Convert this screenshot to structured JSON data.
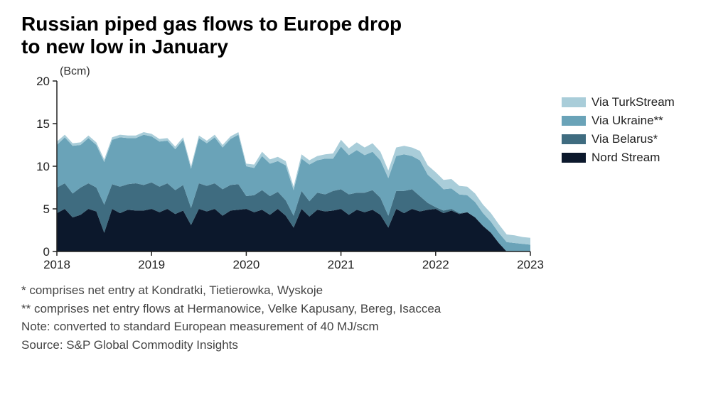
{
  "title_line1": "Russian piped gas flows to Europe drop",
  "title_line2": "to new low in January",
  "unit": "(Bcm)",
  "chart": {
    "type": "stacked-area",
    "background": "#ffffff",
    "axis_color": "#222222",
    "ylim": [
      0,
      20
    ],
    "ytick_step": 5,
    "yticks": [
      0,
      5,
      10,
      15,
      20
    ],
    "x_years": [
      2018,
      2019,
      2020,
      2021,
      2022,
      2023
    ],
    "x_points_per_year": 12,
    "x_label_fontsize": 17,
    "y_label_fontsize": 17,
    "title_fontsize": 28,
    "series": [
      {
        "name": "Nord Stream",
        "color": "#0c182c",
        "values": [
          4.5,
          5.0,
          4.0,
          4.3,
          5.0,
          4.7,
          2.2,
          5.0,
          4.5,
          4.9,
          4.8,
          4.8,
          5.0,
          4.6,
          5.0,
          4.4,
          4.8,
          3.1,
          5.0,
          4.7,
          5.0,
          4.2,
          4.8,
          4.9,
          5.0,
          4.6,
          4.9,
          4.3,
          5.0,
          4.2,
          2.8,
          5.0,
          4.1,
          4.9,
          4.7,
          4.8,
          5.0,
          4.3,
          4.9,
          4.6,
          4.9,
          4.3,
          2.8,
          5.0,
          4.5,
          5.0,
          4.7,
          4.9,
          5.0,
          4.5,
          4.8,
          4.4,
          4.6,
          4.0,
          3.0,
          2.2,
          1.0,
          0,
          0,
          0,
          0
        ]
      },
      {
        "name": "Via Belarus*",
        "color": "#3f6c80",
        "values": [
          3.0,
          3.0,
          2.8,
          3.2,
          3.0,
          2.8,
          3.3,
          2.9,
          3.1,
          3.0,
          3.2,
          3.0,
          3.1,
          3.0,
          3.0,
          2.8,
          3.0,
          2.0,
          3.0,
          3.0,
          3.0,
          3.1,
          3.0,
          3.0,
          1.5,
          2.0,
          2.3,
          2.2,
          2.0,
          1.8,
          1.4,
          2.1,
          1.8,
          2.0,
          2.0,
          2.3,
          2.3,
          2.4,
          2.0,
          2.3,
          2.3,
          2.0,
          1.4,
          2.1,
          2.6,
          2.3,
          1.8,
          0.8,
          0.2,
          0.3,
          0.2,
          0.1,
          0,
          0,
          0,
          0,
          0,
          0,
          0,
          0,
          0
        ]
      },
      {
        "name": "Via Ukraine**",
        "color": "#6aa3b8",
        "values": [
          5.0,
          5.4,
          5.6,
          5.0,
          5.3,
          5.0,
          5.0,
          5.2,
          5.8,
          5.4,
          5.3,
          5.9,
          5.4,
          5.3,
          5.0,
          4.8,
          5.3,
          4.6,
          5.3,
          5.0,
          5.4,
          4.9,
          5.4,
          5.8,
          3.5,
          3.2,
          4.0,
          3.8,
          3.6,
          4.1,
          3.0,
          3.8,
          4.3,
          3.8,
          4.2,
          3.8,
          5.0,
          4.6,
          5.0,
          4.4,
          4.5,
          4.4,
          4.4,
          4.1,
          4.3,
          3.9,
          4.2,
          3.3,
          3.0,
          2.5,
          2.4,
          2.2,
          2.0,
          1.8,
          1.5,
          1.3,
          1.2,
          1.1,
          1.0,
          0.9,
          0.8
        ]
      },
      {
        "name": "Via TurkStream",
        "color": "#a9cdd9",
        "values": [
          0.4,
          0.3,
          0.3,
          0.3,
          0.3,
          0.3,
          0.3,
          0.3,
          0.3,
          0.3,
          0.3,
          0.3,
          0.3,
          0.3,
          0.3,
          0.3,
          0.3,
          0.3,
          0.3,
          0.3,
          0.3,
          0.3,
          0.3,
          0.3,
          0.3,
          0.4,
          0.5,
          0.5,
          0.5,
          0.5,
          0.4,
          0.5,
          0.5,
          0.5,
          0.5,
          0.6,
          0.8,
          0.8,
          0.9,
          0.9,
          1.0,
          1.0,
          0.9,
          1.0,
          1.0,
          1.0,
          1.1,
          1.1,
          1.1,
          1.1,
          1.1,
          1.0,
          1.0,
          1.0,
          1.0,
          1.0,
          1.0,
          0.9,
          0.9,
          0.8,
          0.8
        ]
      }
    ],
    "legend_order": [
      "Via TurkStream",
      "Via Ukraine**",
      "Via Belarus*",
      "Nord Stream"
    ],
    "legend_fontsize": 17
  },
  "notes": [
    "* comprises net entry at Kondratki, Tietierowka, Wyskoje",
    "** comprises net entry flows at Hermanowice, Velke Kapusany, Bereg, Isaccea",
    "Note: converted to standard European measurement of 40 MJ/scm",
    "Source: S&P Global Commodity Insights"
  ]
}
